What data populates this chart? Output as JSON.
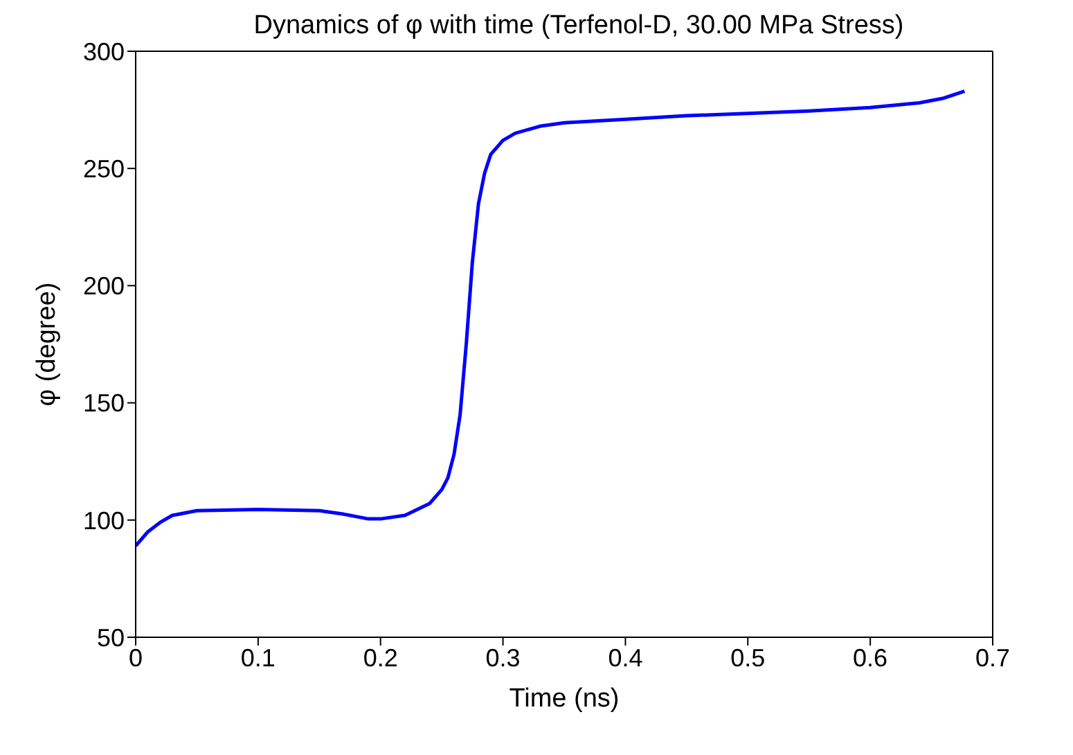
{
  "chart_data": {
    "type": "line",
    "title": "Dynamics of φ with time (Terfenol-D, 30.00 MPa Stress)",
    "xlabel": "Time (ns)",
    "ylabel": "φ (degree)",
    "x": [
      0,
      0.01,
      0.02,
      0.03,
      0.05,
      0.1,
      0.15,
      0.17,
      0.19,
      0.2,
      0.22,
      0.24,
      0.25,
      0.255,
      0.26,
      0.265,
      0.27,
      0.275,
      0.28,
      0.285,
      0.29,
      0.3,
      0.31,
      0.33,
      0.35,
      0.4,
      0.45,
      0.5,
      0.55,
      0.6,
      0.64,
      0.66,
      0.677
    ],
    "series": [
      {
        "color": "#0000ff",
        "values": [
          89,
          95,
          99,
          102,
          104,
          104.5,
          104,
          102.5,
          100.5,
          100.5,
          102,
          107,
          113,
          118,
          128,
          145,
          175,
          210,
          235,
          248,
          256,
          262,
          265,
          268,
          269.5,
          271,
          272.5,
          273.5,
          274.5,
          276,
          278,
          280,
          283
        ]
      }
    ],
    "xlim": [
      0,
      0.7
    ],
    "xticks": [
      0,
      0.1,
      0.2,
      0.3,
      0.4,
      0.5,
      0.6,
      0.7
    ],
    "ylim": [
      50,
      300
    ],
    "yticks": [
      50,
      100,
      150,
      200,
      250,
      300
    ],
    "marker": "none",
    "line_style": "solid"
  }
}
